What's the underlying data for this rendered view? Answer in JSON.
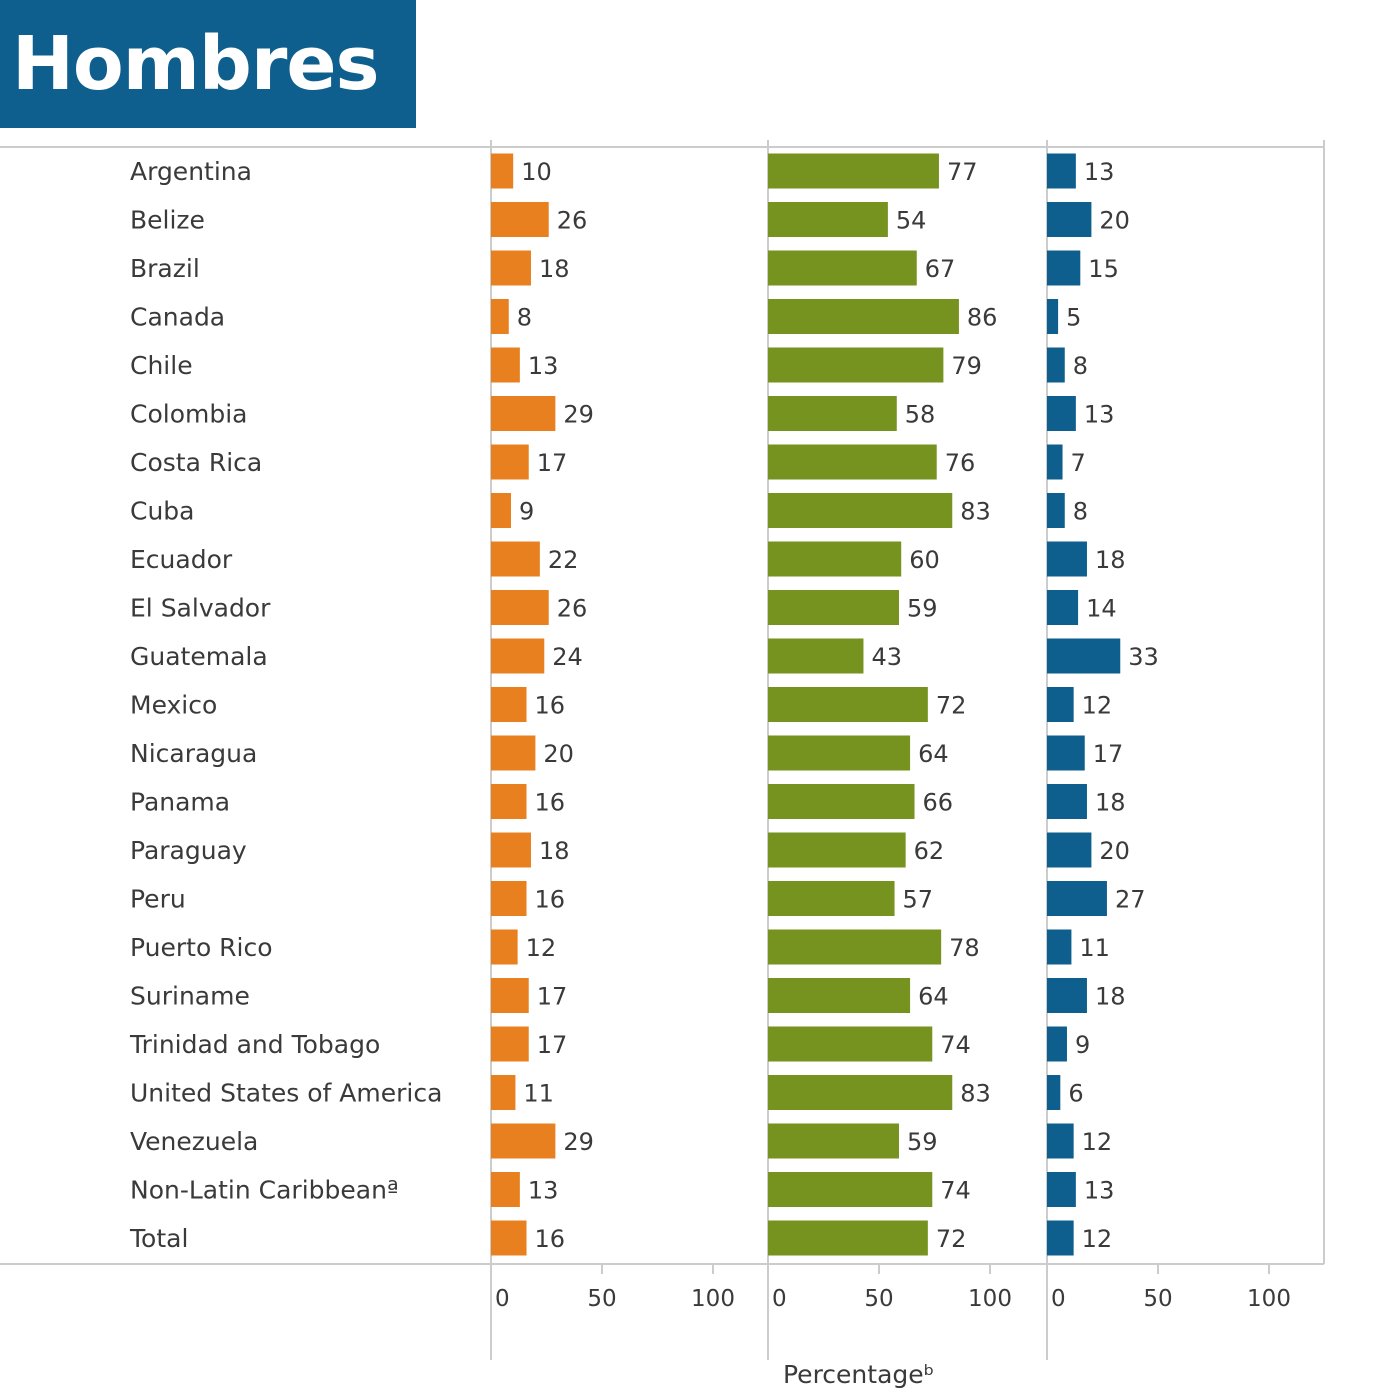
{
  "header": {
    "title": "Hombres"
  },
  "colors": {
    "orange": "#e8801f",
    "green": "#76921f",
    "blue": "#0e5f8e",
    "banner": "#0e5f8e",
    "grid": "#cccccc",
    "text": "#3a3a3a"
  },
  "chart_data": {
    "type": "bar",
    "orientation": "horizontal",
    "layout": "three-panel",
    "categories": [
      "Argentina",
      "Belize",
      "Brazil",
      "Canada",
      "Chile",
      "Colombia",
      "Costa Rica",
      "Cuba",
      "Ecuador",
      "El Salvador",
      "Guatemala",
      "Mexico",
      "Nicaragua",
      "Panama",
      "Paraguay",
      "Peru",
      "Puerto Rico",
      "Suriname",
      "Trinidad and Tobago",
      "United States of America",
      "Venezuela",
      "Non-Latin Caribbeanª",
      "Total"
    ],
    "series": [
      {
        "color": "#e8801f",
        "values": [
          10,
          26,
          18,
          8,
          13,
          29,
          17,
          9,
          22,
          26,
          24,
          16,
          20,
          16,
          18,
          16,
          12,
          17,
          17,
          11,
          29,
          13,
          16
        ]
      },
      {
        "color": "#76921f",
        "values": [
          77,
          54,
          67,
          86,
          79,
          58,
          76,
          83,
          60,
          59,
          43,
          72,
          64,
          66,
          62,
          57,
          78,
          64,
          74,
          83,
          59,
          74,
          72
        ]
      },
      {
        "color": "#0e5f8e",
        "values": [
          13,
          20,
          15,
          5,
          8,
          13,
          7,
          8,
          18,
          14,
          33,
          12,
          17,
          18,
          20,
          27,
          11,
          18,
          9,
          6,
          12,
          13,
          12
        ]
      }
    ],
    "xticks": [
      "0",
      "50",
      "100"
    ],
    "xlim": [
      0,
      100
    ],
    "xlabel": "Percentageᵇ",
    "grid": false
  }
}
